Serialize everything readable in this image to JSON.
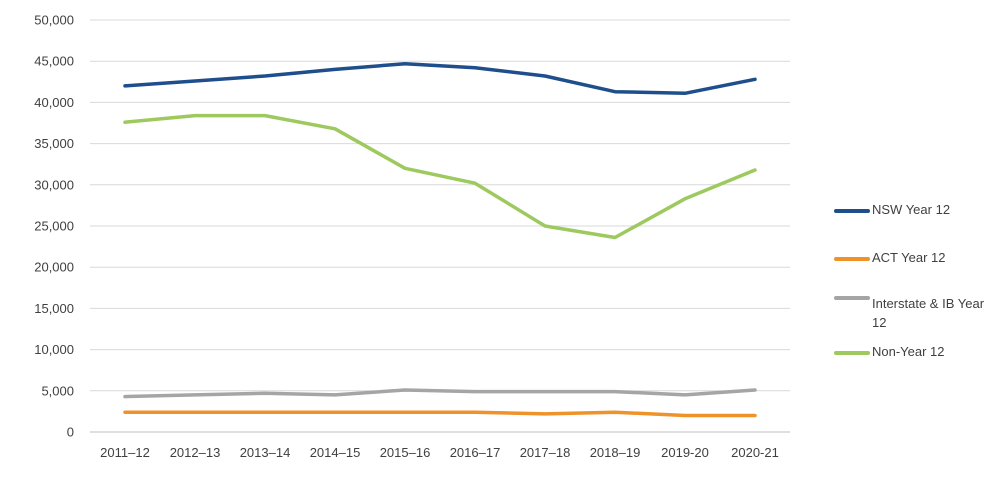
{
  "chart_data": {
    "type": "line",
    "categories": [
      "2011–12",
      "2012–13",
      "2013–14",
      "2014–15",
      "2015–16",
      "2016–17",
      "2017–18",
      "2018–19",
      "2019-20",
      "2020-21"
    ],
    "ylim": [
      0,
      50000
    ],
    "yticks": [
      0,
      5000,
      10000,
      15000,
      20000,
      25000,
      30000,
      35000,
      40000,
      45000,
      50000
    ],
    "ytick_labels": [
      "0",
      "5,000",
      "10,000",
      "15,000",
      "20,000",
      "25,000",
      "30,000",
      "35,000",
      "40,000",
      "45,000",
      "50,000"
    ],
    "grid": true,
    "legend_position": "right",
    "series": [
      {
        "name": "NSW Year 12",
        "color": "#1F4E8C",
        "values": [
          42000,
          42600,
          43200,
          44000,
          44700,
          44200,
          43200,
          41300,
          41100,
          42800
        ]
      },
      {
        "name": "ACT Year 12",
        "color": "#F0922A",
        "values": [
          2400,
          2400,
          2400,
          2400,
          2400,
          2400,
          2200,
          2400,
          2000,
          2000
        ]
      },
      {
        "name": "Interstate & IB Year 12",
        "color": "#A5A5A5",
        "values": [
          4300,
          4500,
          4700,
          4500,
          5100,
          4900,
          4900,
          4900,
          4500,
          5100
        ]
      },
      {
        "name": "Non-Year 12",
        "color": "#9DC95E",
        "values": [
          37600,
          38400,
          38400,
          36800,
          32000,
          30200,
          25000,
          23600,
          28300,
          31800
        ]
      }
    ]
  }
}
